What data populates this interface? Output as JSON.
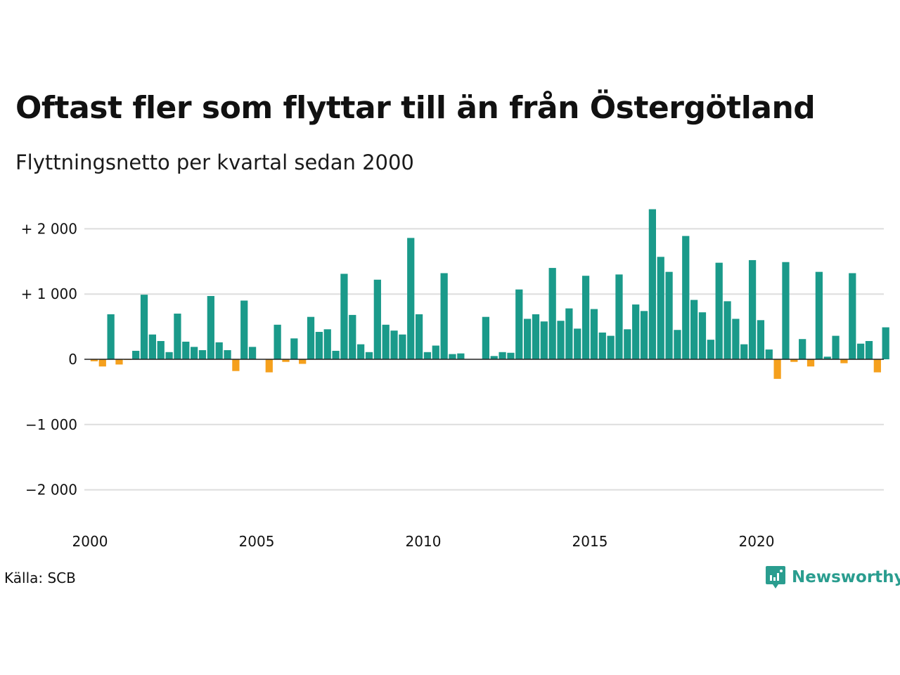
{
  "title": "Oftast fler som flyttar till än från Östergötland",
  "subtitle": "Flyttningsnetto per kvartal sedan 2000",
  "source": "Källa: SCB",
  "brand": {
    "name": "Newsworthy",
    "icon": "newsworthy-logo-icon",
    "color": "#2a9d8f"
  },
  "colors": {
    "positive": "#1a9a8a",
    "negative": "#f5a01d",
    "grid": "#dddddd",
    "zero": "#222222"
  },
  "chart_data": {
    "type": "bar",
    "title": "Oftast fler som flyttar till än från Östergötland",
    "subtitle": "Flyttningsnetto per kvartal sedan 2000",
    "ylim": [
      -2400,
      2300
    ],
    "yticks": [
      2000,
      1000,
      0,
      -1000,
      -2000
    ],
    "ytick_labels": [
      "+ 2 000",
      "+ 1 000",
      "0",
      "−1 000",
      "−2 000"
    ],
    "xlim": [
      2000,
      2024
    ],
    "xticks": [
      2000,
      2005,
      2010,
      2015,
      2020
    ],
    "xtick_labels": [
      "2000",
      "2005",
      "2010",
      "2015",
      "2020"
    ],
    "grid": true,
    "start_year": 2000,
    "periods_per_year": 4,
    "values": [
      -30,
      -110,
      690,
      -80,
      -10,
      130,
      990,
      380,
      280,
      110,
      700,
      270,
      190,
      140,
      970,
      260,
      140,
      -180,
      900,
      190,
      0,
      -200,
      530,
      -40,
      320,
      -70,
      650,
      420,
      460,
      130,
      1310,
      680,
      230,
      110,
      1220,
      530,
      440,
      380,
      1860,
      690,
      110,
      210,
      1320,
      80,
      90,
      0,
      0,
      650,
      50,
      110,
      100,
      1070,
      620,
      690,
      580,
      1400,
      590,
      780,
      470,
      1280,
      770,
      410,
      360,
      1300,
      460,
      840,
      740,
      2300,
      1570,
      1340,
      450,
      1890,
      910,
      720,
      300,
      1480,
      890,
      620,
      230,
      1520,
      600,
      150,
      -300,
      1490,
      -40,
      310,
      -110,
      1340,
      40,
      360,
      -60,
      1320,
      240,
      280,
      -200,
      490
    ]
  }
}
